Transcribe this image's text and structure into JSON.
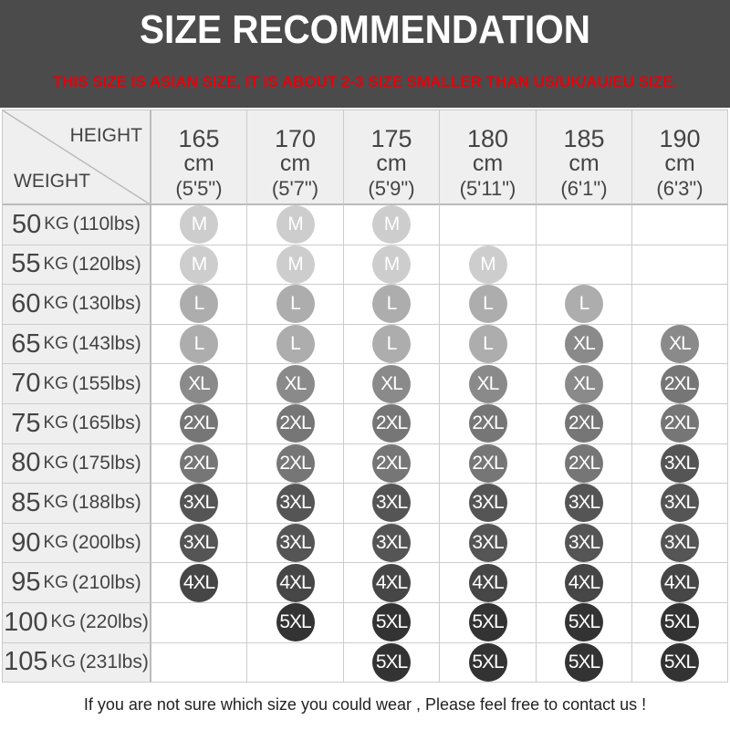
{
  "header": {
    "title": "SIZE RECOMMENDATION",
    "warning": "THIS SIZE IS ASIAN SIZE, IT IS ABOUT 2-3 SIZE SMALLER THAN US/UK/AU/EU SIZE."
  },
  "table": {
    "height_label": "HEIGHT",
    "weight_label": "WEIGHT",
    "columns": [
      {
        "cm": "165",
        "unit": "cm",
        "ft": "(5'5\")"
      },
      {
        "cm": "170",
        "unit": "cm",
        "ft": "(5'7\")"
      },
      {
        "cm": "175",
        "unit": "cm",
        "ft": "(5'9\")"
      },
      {
        "cm": "180",
        "unit": "cm",
        "ft": "(5'11\")"
      },
      {
        "cm": "185",
        "unit": "cm",
        "ft": "(6'1\")"
      },
      {
        "cm": "190",
        "unit": "cm",
        "ft": "(6'3\")"
      }
    ],
    "rows": [
      {
        "kg": "50",
        "unit": "KG",
        "lbs": "(110lbs)",
        "sizes": [
          "M",
          "M",
          "M",
          "",
          "",
          ""
        ]
      },
      {
        "kg": "55",
        "unit": "KG",
        "lbs": "(120lbs)",
        "sizes": [
          "M",
          "M",
          "M",
          "M",
          "",
          ""
        ]
      },
      {
        "kg": "60",
        "unit": "KG",
        "lbs": "(130lbs)",
        "sizes": [
          "L",
          "L",
          "L",
          "L",
          "L",
          ""
        ]
      },
      {
        "kg": "65",
        "unit": "KG",
        "lbs": "(143lbs)",
        "sizes": [
          "L",
          "L",
          "L",
          "L",
          "XL",
          "XL"
        ]
      },
      {
        "kg": "70",
        "unit": "KG",
        "lbs": "(155lbs)",
        "sizes": [
          "XL",
          "XL",
          "XL",
          "XL",
          "XL",
          "2XL"
        ]
      },
      {
        "kg": "75",
        "unit": "KG",
        "lbs": "(165lbs)",
        "sizes": [
          "2XL",
          "2XL",
          "2XL",
          "2XL",
          "2XL",
          "2XL"
        ]
      },
      {
        "kg": "80",
        "unit": "KG",
        "lbs": "(175lbs)",
        "sizes": [
          "2XL",
          "2XL",
          "2XL",
          "2XL",
          "2XL",
          "3XL"
        ]
      },
      {
        "kg": "85",
        "unit": "KG",
        "lbs": "(188lbs)",
        "sizes": [
          "3XL",
          "3XL",
          "3XL",
          "3XL",
          "3XL",
          "3XL"
        ]
      },
      {
        "kg": "90",
        "unit": "KG",
        "lbs": "(200lbs)",
        "sizes": [
          "3XL",
          "3XL",
          "3XL",
          "3XL",
          "3XL",
          "3XL"
        ]
      },
      {
        "kg": "95",
        "unit": "KG",
        "lbs": "(210lbs)",
        "sizes": [
          "4XL",
          "4XL",
          "4XL",
          "4XL",
          "4XL",
          "4XL"
        ]
      },
      {
        "kg": "100",
        "unit": "KG",
        "lbs": "(220lbs)",
        "sizes": [
          "",
          "5XL",
          "5XL",
          "5XL",
          "5XL",
          "5XL"
        ]
      },
      {
        "kg": "105",
        "unit": "KG",
        "lbs": "(231lbs)",
        "sizes": [
          "",
          "",
          "5XL",
          "5XL",
          "5XL",
          "5XL"
        ]
      }
    ]
  },
  "size_colors": {
    "M": "#cdcdcd",
    "L": "#adadad",
    "XL": "#8a8a8a",
    "2XL": "#767676",
    "3XL": "#555555",
    "4XL": "#464646",
    "5XL": "#333333"
  },
  "colors": {
    "header_bg": "#4b4b4b",
    "warning": "#e8000b"
  },
  "footer": {
    "text": "If you are not sure which size you could wear , Please feel free to contact us !"
  }
}
